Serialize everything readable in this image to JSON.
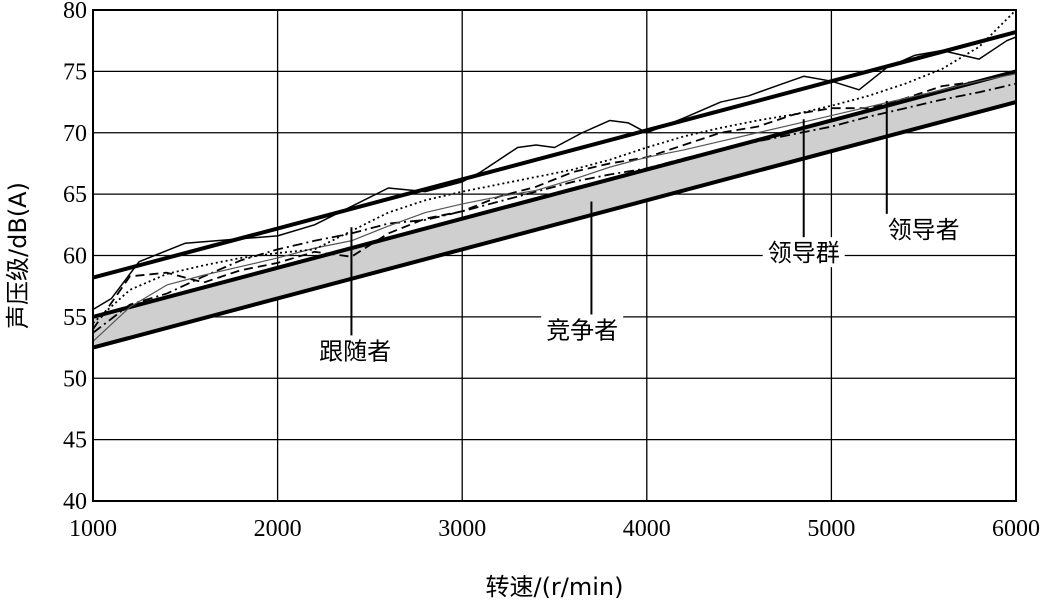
{
  "chart_data": {
    "type": "line",
    "xlabel": "转速/(r/min)",
    "ylabel": "声压级/dB(A)",
    "xlim": [
      1000,
      6000
    ],
    "ylim": [
      40,
      80
    ],
    "x_ticks": [
      1000,
      2000,
      3000,
      4000,
      5000,
      6000
    ],
    "y_ticks": [
      40,
      45,
      50,
      55,
      60,
      65,
      70,
      75,
      80
    ],
    "grid": true,
    "band": {
      "upper": [
        [
          1000,
          55
        ],
        [
          6000,
          75
        ]
      ],
      "lower": [
        [
          1000,
          52.5
        ],
        [
          6000,
          72.5
        ]
      ],
      "fill_color": "#cfcfcf"
    },
    "series": [
      {
        "values": [
          [
            1000,
            58.2
          ],
          [
            6000,
            78.2
          ]
        ],
        "style": "thick-solid"
      },
      {
        "values": [
          [
            1000,
            55
          ],
          [
            6000,
            75
          ]
        ],
        "style": "thick-solid"
      },
      {
        "values": [
          [
            1000,
            52.5
          ],
          [
            6000,
            72.5
          ]
        ],
        "style": "thick-solid"
      },
      {
        "values": [
          [
            1000,
            55.6
          ],
          [
            1100,
            56.5
          ],
          [
            1250,
            59.5
          ],
          [
            1500,
            61
          ],
          [
            1750,
            61.3
          ],
          [
            2000,
            61.6
          ],
          [
            2200,
            62.5
          ],
          [
            2400,
            64
          ],
          [
            2600,
            65.5
          ],
          [
            2800,
            65.2
          ],
          [
            3000,
            66
          ],
          [
            3100,
            66.8
          ],
          [
            3200,
            67.8
          ],
          [
            3300,
            68.8
          ],
          [
            3400,
            69
          ],
          [
            3500,
            68.8
          ],
          [
            3650,
            70
          ],
          [
            3800,
            71
          ],
          [
            3900,
            70.8
          ],
          [
            4000,
            70
          ],
          [
            4200,
            71.2
          ],
          [
            4400,
            72.5
          ],
          [
            4550,
            73
          ],
          [
            4700,
            73.8
          ],
          [
            4850,
            74.6
          ],
          [
            5000,
            74.2
          ],
          [
            5150,
            73.5
          ],
          [
            5300,
            75.3
          ],
          [
            5450,
            76.3
          ],
          [
            5600,
            76.7
          ],
          [
            5800,
            76
          ],
          [
            5950,
            77.5
          ],
          [
            6000,
            77.8
          ]
        ],
        "style": "thin-solid"
      },
      {
        "values": [
          [
            1000,
            54
          ],
          [
            1200,
            58.3
          ],
          [
            1400,
            58.6
          ],
          [
            1600,
            57.8
          ],
          [
            1800,
            58.8
          ],
          [
            2000,
            59.4
          ],
          [
            2200,
            60.3
          ],
          [
            2400,
            59.9
          ],
          [
            2600,
            61.8
          ],
          [
            2800,
            63
          ],
          [
            3000,
            63.6
          ],
          [
            3200,
            64.8
          ],
          [
            3400,
            65.6
          ],
          [
            3600,
            66.8
          ],
          [
            3800,
            67.5
          ],
          [
            4000,
            68
          ],
          [
            4200,
            69
          ],
          [
            4400,
            70
          ],
          [
            4600,
            70.5
          ],
          [
            4800,
            71.5
          ],
          [
            5000,
            72
          ],
          [
            5200,
            72
          ],
          [
            5400,
            72.8
          ],
          [
            5600,
            73.8
          ],
          [
            5800,
            74.2
          ],
          [
            6000,
            75
          ]
        ],
        "style": "dashed"
      },
      {
        "values": [
          [
            1000,
            53.7
          ],
          [
            1200,
            56
          ],
          [
            1400,
            56.9
          ],
          [
            1600,
            58.3
          ],
          [
            1800,
            59.6
          ],
          [
            2000,
            60.5
          ],
          [
            2200,
            61.2
          ],
          [
            2400,
            61.8
          ],
          [
            2600,
            62.6
          ],
          [
            2800,
            62.9
          ],
          [
            3000,
            63.6
          ],
          [
            3200,
            64.4
          ],
          [
            3400,
            65.2
          ],
          [
            3600,
            66
          ],
          [
            3800,
            66.6
          ],
          [
            4000,
            67.1
          ],
          [
            4200,
            67.9
          ],
          [
            4400,
            68.6
          ],
          [
            4600,
            69.3
          ],
          [
            4800,
            69.9
          ],
          [
            5000,
            70.5
          ],
          [
            5200,
            71.3
          ],
          [
            5400,
            72
          ],
          [
            5600,
            72.7
          ],
          [
            5800,
            73.3
          ],
          [
            6000,
            74
          ]
        ],
        "style": "dash-dot"
      },
      {
        "values": [
          [
            1000,
            53
          ],
          [
            1200,
            55.8
          ],
          [
            1400,
            57.6
          ],
          [
            1600,
            58.4
          ],
          [
            1800,
            59.1
          ],
          [
            2000,
            59.8
          ],
          [
            2200,
            60.6
          ],
          [
            2400,
            61.2
          ],
          [
            2600,
            62.4
          ],
          [
            2800,
            63.5
          ],
          [
            3000,
            64.2
          ],
          [
            3200,
            64.8
          ],
          [
            3400,
            65.3
          ],
          [
            3600,
            66.2
          ],
          [
            3800,
            67.2
          ],
          [
            4000,
            68
          ],
          [
            4200,
            68.6
          ],
          [
            4400,
            69.3
          ],
          [
            4600,
            70
          ],
          [
            4800,
            70.7
          ],
          [
            5000,
            71.4
          ],
          [
            5200,
            72.1
          ],
          [
            5400,
            72.8
          ],
          [
            5600,
            73.5
          ],
          [
            5800,
            74.2
          ],
          [
            6000,
            74.8
          ]
        ],
        "style": "thin-solid-gray"
      },
      {
        "values": [
          [
            1000,
            54.5
          ],
          [
            1200,
            57.2
          ],
          [
            1400,
            58.5
          ],
          [
            1600,
            59.2
          ],
          [
            1800,
            59.8
          ],
          [
            2000,
            60.2
          ],
          [
            2200,
            60.5
          ],
          [
            2400,
            62
          ],
          [
            2600,
            63.5
          ],
          [
            2800,
            64.5
          ],
          [
            3000,
            65.2
          ],
          [
            3200,
            65.8
          ],
          [
            3400,
            66.4
          ],
          [
            3600,
            67
          ],
          [
            3800,
            67.8
          ],
          [
            4000,
            68.8
          ],
          [
            4200,
            69.7
          ],
          [
            4400,
            70.4
          ],
          [
            4600,
            71
          ],
          [
            4800,
            71.5
          ],
          [
            5000,
            72.2
          ],
          [
            5200,
            73
          ],
          [
            5400,
            74
          ],
          [
            5600,
            75.2
          ],
          [
            5800,
            77
          ],
          [
            6000,
            80
          ]
        ],
        "style": "dotted"
      }
    ],
    "annotations": [
      {
        "text": "跟随者",
        "x": 2400,
        "y": 62.3,
        "label_x": 2420,
        "label_y": 51.7
      },
      {
        "text": "竞争者",
        "x": 3700,
        "y": 64.4,
        "label_x": 3650,
        "label_y": 53.4
      },
      {
        "text": "领导群",
        "x": 4850,
        "y": 71.1,
        "label_x": 4850,
        "label_y": 59.7
      },
      {
        "text": "领导者",
        "x": 5300,
        "y": 72.6,
        "label_x": 5500,
        "label_y": 61.6
      }
    ]
  }
}
